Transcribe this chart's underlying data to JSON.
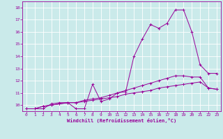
{
  "xlabel": "Windchill (Refroidissement éolien,°C)",
  "background_color": "#caeaea",
  "line_color": "#990099",
  "grid_color": "#ffffff",
  "xlim": [
    -0.5,
    23.5
  ],
  "ylim": [
    9.5,
    18.5
  ],
  "xticks": [
    0,
    1,
    2,
    3,
    4,
    5,
    6,
    7,
    8,
    9,
    10,
    11,
    12,
    13,
    14,
    15,
    16,
    17,
    18,
    19,
    20,
    21,
    22,
    23
  ],
  "yticks": [
    10,
    11,
    12,
    13,
    14,
    15,
    16,
    17,
    18
  ],
  "series1_x": [
    0,
    1,
    2,
    3,
    4,
    5,
    6,
    7,
    8,
    9,
    10,
    11,
    12,
    13,
    14,
    15,
    16,
    17,
    18,
    19,
    20,
    21,
    22,
    23
  ],
  "series1_y": [
    9.7,
    9.7,
    9.7,
    10.1,
    10.2,
    10.2,
    9.7,
    9.7,
    11.7,
    10.3,
    10.5,
    11.0,
    11.1,
    14.0,
    15.4,
    16.6,
    16.3,
    16.7,
    17.8,
    17.8,
    16.0,
    13.3,
    12.6,
    12.6
  ],
  "series2_x": [
    0,
    1,
    2,
    3,
    4,
    5,
    6,
    7,
    8,
    9,
    10,
    11,
    12,
    13,
    14,
    15,
    16,
    17,
    18,
    19,
    20,
    21,
    22,
    23
  ],
  "series2_y": [
    9.7,
    9.7,
    9.9,
    10.0,
    10.1,
    10.2,
    10.2,
    10.3,
    10.4,
    10.5,
    10.6,
    10.7,
    10.9,
    11.0,
    11.1,
    11.2,
    11.4,
    11.5,
    11.6,
    11.7,
    11.8,
    11.9,
    11.4,
    11.3
  ],
  "series3_x": [
    0,
    1,
    2,
    3,
    4,
    5,
    6,
    7,
    8,
    9,
    10,
    11,
    12,
    13,
    14,
    15,
    16,
    17,
    18,
    19,
    20,
    21,
    22,
    23
  ],
  "series3_y": [
    9.7,
    9.7,
    9.9,
    10.0,
    10.1,
    10.2,
    10.2,
    10.4,
    10.5,
    10.6,
    10.8,
    11.0,
    11.2,
    11.4,
    11.6,
    11.8,
    12.0,
    12.2,
    12.4,
    12.4,
    12.3,
    12.3,
    11.4,
    11.3
  ]
}
